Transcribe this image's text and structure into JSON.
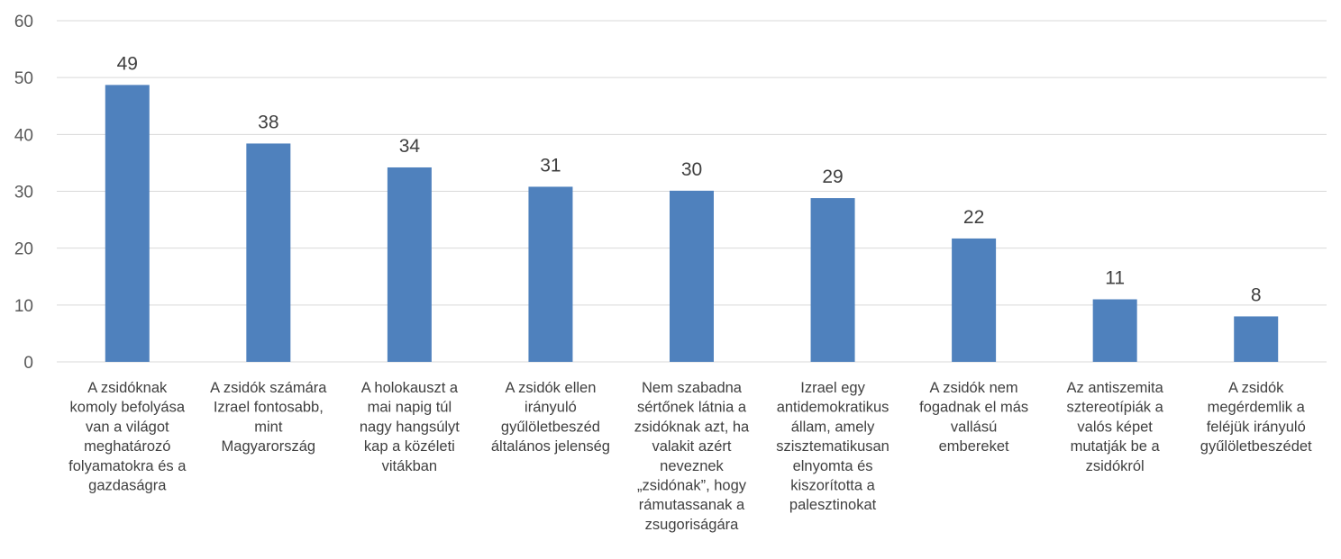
{
  "chart_data": {
    "type": "bar",
    "categories": [
      [
        "A zsidóknak",
        "komoly befolyása",
        "van a világot",
        "meghatározó",
        "folyamatokra és a",
        "gazdaságra"
      ],
      [
        "A zsidók számára",
        "Izrael fontosabb,",
        "mint",
        "Magyarország"
      ],
      [
        "A holokauszt a",
        "mai napig túl",
        "nagy hangsúlyt",
        "kap a közéleti",
        "vitákban"
      ],
      [
        "A zsidók ellen",
        "irányuló",
        "gyűlöletbeszéd",
        "általános jelenség"
      ],
      [
        "Nem szabadna",
        "sértőnek látnia a",
        "zsidóknak azt, ha",
        "valakit azért",
        "neveznek",
        "„zsidónak”, hogy",
        "rámutassanak a",
        "zsugoriságára"
      ],
      [
        "Izrael egy",
        "antidemokratikus",
        "állam, amely",
        "szisztematikusan",
        "elnyomta és",
        "kiszorította a",
        "palesztinokat"
      ],
      [
        "A zsidók nem",
        "fogadnak el más",
        "vallású",
        "embereket"
      ],
      [
        "Az antiszemita",
        "sztereotípiák a",
        "valós képet",
        "mutatják be a",
        "zsidókról"
      ],
      [
        "A zsidók",
        "megérdemlik a",
        "feléjük irányuló",
        "gyűlöletbeszédet"
      ]
    ],
    "values": [
      49,
      38,
      34,
      31,
      30,
      29,
      22,
      11,
      8
    ],
    "bar_heights": [
      48.7,
      38.4,
      34.2,
      30.8,
      30.1,
      28.8,
      21.7,
      11.0,
      8.0
    ],
    "ylim": [
      0,
      60
    ],
    "yticks": [
      "0",
      "10",
      "20",
      "30",
      "40",
      "50",
      "60"
    ],
    "grid": true,
    "legend": "none",
    "bar_color": "#4F81BD",
    "grid_color": "#D9D9D9"
  }
}
